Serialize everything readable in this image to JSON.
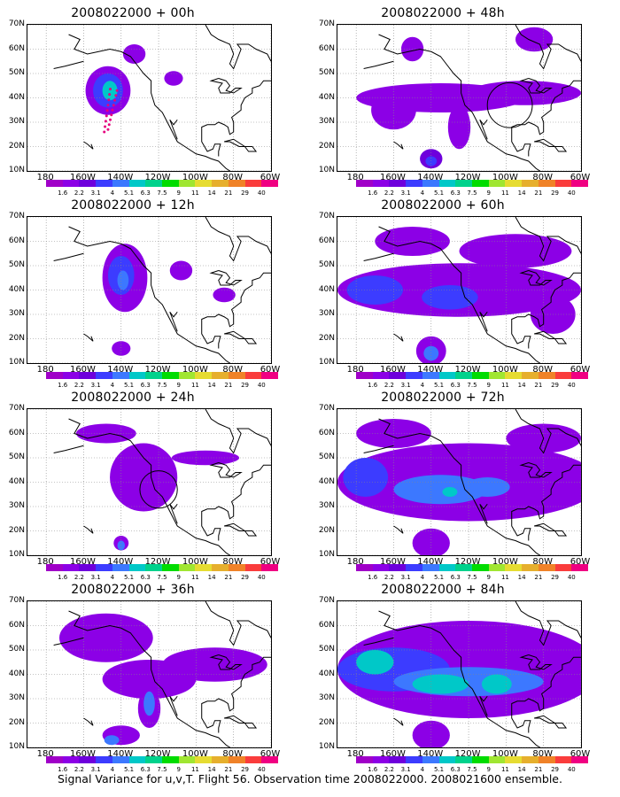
{
  "footer_caption": "Signal Variance for u,v,T. Flight 56. Observation time 2008022000. 2008021600 ensemble.",
  "map": {
    "lat_labels": [
      "70N",
      "60N",
      "50N",
      "40N",
      "30N",
      "20N",
      "10N"
    ],
    "lon_labels": [
      "180",
      "160W",
      "140W",
      "120W",
      "100W",
      "80W",
      "60W"
    ]
  },
  "colorbar": {
    "labels": [
      "1.6",
      "2.2",
      "3.1",
      "4",
      "5.1",
      "6.3",
      "7.5",
      "9",
      "11",
      "14",
      "21",
      "29",
      "40"
    ],
    "colors": [
      "#a000c8",
      "#8c00e6",
      "#6e00dc",
      "#3c3cff",
      "#3c78ff",
      "#00c8c8",
      "#00d28c",
      "#00dc00",
      "#a0e632",
      "#e6dc32",
      "#e6af2d",
      "#f08228",
      "#fa3c3c",
      "#f00082"
    ]
  },
  "panels": [
    {
      "id": "p00",
      "title": "2008022000 + 00h"
    },
    {
      "id": "p48",
      "title": "2008022000 + 48h"
    },
    {
      "id": "p12",
      "title": "2008022000 + 12h"
    },
    {
      "id": "p60",
      "title": "2008022000 + 60h"
    },
    {
      "id": "p24",
      "title": "2008022000 + 24h"
    },
    {
      "id": "p72",
      "title": "2008022000 + 72h"
    },
    {
      "id": "p36",
      "title": "2008022000 + 36h"
    },
    {
      "id": "p84",
      "title": "2008022000 + 84h"
    }
  ],
  "fields": {
    "p00": [
      {
        "lon": -147,
        "lat": 43,
        "rx": 12,
        "ry": 10,
        "level": 1
      },
      {
        "lon": -147,
        "lat": 43,
        "rx": 8,
        "ry": 7,
        "level": 3
      },
      {
        "lon": -146,
        "lat": 43,
        "rx": 4,
        "ry": 4,
        "level": 5
      },
      {
        "lon": -133,
        "lat": 58,
        "rx": 6,
        "ry": 4,
        "level": 1
      },
      {
        "lon": -112,
        "lat": 48,
        "rx": 5,
        "ry": 3,
        "level": 1
      }
    ],
    "p48": [
      {
        "lon": -135,
        "lat": 40,
        "rx": 45,
        "ry": 6,
        "level": 1
      },
      {
        "lon": -90,
        "lat": 42,
        "rx": 30,
        "ry": 5,
        "level": 1
      },
      {
        "lon": -160,
        "lat": 35,
        "rx": 12,
        "ry": 8,
        "level": 1
      },
      {
        "lon": -125,
        "lat": 28,
        "rx": 6,
        "ry": 9,
        "level": 1
      },
      {
        "lon": -140,
        "lat": 15,
        "rx": 6,
        "ry": 4,
        "level": 2
      },
      {
        "lon": -140,
        "lat": 14,
        "rx": 3,
        "ry": 2,
        "level": 3
      },
      {
        "lon": -150,
        "lat": 60,
        "rx": 6,
        "ry": 5,
        "level": 1
      },
      {
        "lon": -85,
        "lat": 64,
        "rx": 10,
        "ry": 5,
        "level": 1
      }
    ],
    "p12": [
      {
        "lon": -138,
        "lat": 45,
        "rx": 12,
        "ry": 14,
        "level": 1
      },
      {
        "lon": -140,
        "lat": 46,
        "rx": 7,
        "ry": 8,
        "level": 3
      },
      {
        "lon": -139,
        "lat": 44,
        "rx": 3,
        "ry": 4,
        "level": 4
      },
      {
        "lon": -140,
        "lat": 16,
        "rx": 5,
        "ry": 3,
        "level": 1
      },
      {
        "lon": -108,
        "lat": 48,
        "rx": 6,
        "ry": 4,
        "level": 1
      },
      {
        "lon": -85,
        "lat": 38,
        "rx": 6,
        "ry": 3,
        "level": 1
      }
    ],
    "p60": [
      {
        "lon": -125,
        "lat": 40,
        "rx": 65,
        "ry": 11,
        "level": 1
      },
      {
        "lon": -170,
        "lat": 40,
        "rx": 15,
        "ry": 6,
        "level": 3
      },
      {
        "lon": -130,
        "lat": 37,
        "rx": 15,
        "ry": 5,
        "level": 3
      },
      {
        "lon": -95,
        "lat": 56,
        "rx": 30,
        "ry": 7,
        "level": 1
      },
      {
        "lon": -150,
        "lat": 60,
        "rx": 20,
        "ry": 6,
        "level": 1
      },
      {
        "lon": -140,
        "lat": 15,
        "rx": 8,
        "ry": 6,
        "level": 1
      },
      {
        "lon": -140,
        "lat": 14,
        "rx": 4,
        "ry": 3,
        "level": 4
      },
      {
        "lon": -75,
        "lat": 30,
        "rx": 12,
        "ry": 8,
        "level": 1
      }
    ],
    "p72": [
      {
        "lon": -120,
        "lat": 40,
        "rx": 70,
        "ry": 16,
        "level": 1
      },
      {
        "lon": -175,
        "lat": 42,
        "rx": 12,
        "ry": 8,
        "level": 3
      },
      {
        "lon": -135,
        "lat": 37,
        "rx": 25,
        "ry": 6,
        "level": 4
      },
      {
        "lon": -110,
        "lat": 38,
        "rx": 12,
        "ry": 4,
        "level": 4
      },
      {
        "lon": -130,
        "lat": 36,
        "rx": 4,
        "ry": 2,
        "level": 5
      },
      {
        "lon": -160,
        "lat": 60,
        "rx": 20,
        "ry": 6,
        "level": 1
      },
      {
        "lon": -80,
        "lat": 58,
        "rx": 20,
        "ry": 6,
        "level": 1
      },
      {
        "lon": -140,
        "lat": 15,
        "rx": 10,
        "ry": 6,
        "level": 1
      }
    ],
    "p24": [
      {
        "lon": -128,
        "lat": 42,
        "rx": 18,
        "ry": 14,
        "level": 1
      },
      {
        "lon": -148,
        "lat": 60,
        "rx": 16,
        "ry": 4,
        "level": 1
      },
      {
        "lon": -95,
        "lat": 50,
        "rx": 18,
        "ry": 3,
        "level": 1
      },
      {
        "lon": -140,
        "lat": 15,
        "rx": 4,
        "ry": 3,
        "level": 1
      },
      {
        "lon": -140,
        "lat": 14,
        "rx": 2,
        "ry": 2,
        "level": 4
      }
    ],
    "p36": [
      {
        "lon": -148,
        "lat": 55,
        "rx": 25,
        "ry": 10,
        "level": 1
      },
      {
        "lon": -125,
        "lat": 38,
        "rx": 25,
        "ry": 8,
        "level": 1
      },
      {
        "lon": -125,
        "lat": 26,
        "rx": 6,
        "ry": 8,
        "level": 1
      },
      {
        "lon": -125,
        "lat": 28,
        "rx": 3,
        "ry": 5,
        "level": 4
      },
      {
        "lon": -90,
        "lat": 44,
        "rx": 28,
        "ry": 7,
        "level": 1
      },
      {
        "lon": -140,
        "lat": 15,
        "rx": 10,
        "ry": 4,
        "level": 1
      },
      {
        "lon": -145,
        "lat": 13,
        "rx": 4,
        "ry": 2,
        "level": 4
      }
    ],
    "p84": [
      {
        "lon": -120,
        "lat": 42,
        "rx": 70,
        "ry": 20,
        "level": 1
      },
      {
        "lon": -160,
        "lat": 42,
        "rx": 30,
        "ry": 9,
        "level": 3
      },
      {
        "lon": -120,
        "lat": 37,
        "rx": 40,
        "ry": 6,
        "level": 4
      },
      {
        "lon": -170,
        "lat": 45,
        "rx": 10,
        "ry": 5,
        "level": 5
      },
      {
        "lon": -135,
        "lat": 36,
        "rx": 15,
        "ry": 4,
        "level": 5
      },
      {
        "lon": -105,
        "lat": 36,
        "rx": 8,
        "ry": 4,
        "level": 5
      },
      {
        "lon": -140,
        "lat": 15,
        "rx": 10,
        "ry": 6,
        "level": 1
      }
    ]
  },
  "overlays": {
    "p00_dots": true,
    "p24_circle": {
      "lon": -120,
      "lat": 37,
      "r": 10
    },
    "p48_circle": {
      "lon": -98,
      "lat": 37,
      "r": 12
    }
  }
}
